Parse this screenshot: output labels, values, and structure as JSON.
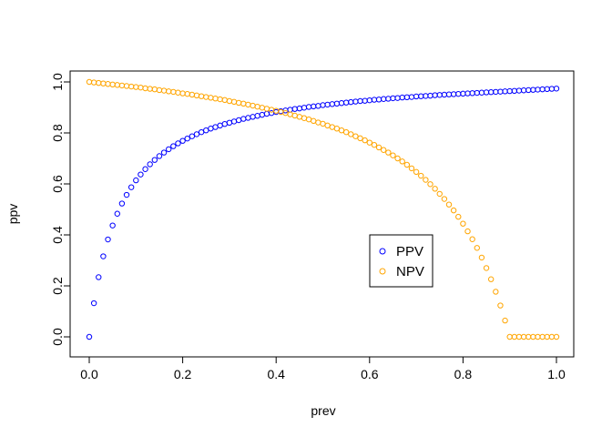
{
  "chart_data": {
    "type": "scatter",
    "title": "",
    "xlabel": "prev",
    "ylabel": "ppv",
    "xlim": [
      0,
      1
    ],
    "ylim": [
      0,
      1
    ],
    "xticks": [
      "0.0",
      "0.2",
      "0.4",
      "0.6",
      "0.8",
      "1.0"
    ],
    "yticks": [
      "0.0",
      "0.2",
      "0.4",
      "0.6",
      "0.8",
      "1.0"
    ],
    "grid": false,
    "legend_position": "center-right",
    "marker": "open-circle",
    "series": [
      {
        "name": "PPV",
        "color": "#0000ff",
        "x": [
          0,
          0.01,
          0.02,
          0.03,
          0.04,
          0.05,
          0.06,
          0.07,
          0.08,
          0.09,
          0.1,
          0.11,
          0.12,
          0.13,
          0.14,
          0.15,
          0.16,
          0.17,
          0.18,
          0.19,
          0.2,
          0.21,
          0.22,
          0.23,
          0.24,
          0.25,
          0.26,
          0.27,
          0.28,
          0.29,
          0.3,
          0.31,
          0.32,
          0.33,
          0.34,
          0.35,
          0.36,
          0.37,
          0.38,
          0.39,
          0.4,
          0.41,
          0.42,
          0.43,
          0.44,
          0.45,
          0.46,
          0.47,
          0.48,
          0.49,
          0.5,
          0.51,
          0.52,
          0.53,
          0.54,
          0.55,
          0.56,
          0.57,
          0.58,
          0.59,
          0.6,
          0.61,
          0.62,
          0.63,
          0.64,
          0.65,
          0.66,
          0.67,
          0.68,
          0.69,
          0.7,
          0.71,
          0.72,
          0.73,
          0.74,
          0.75,
          0.76,
          0.77,
          0.78,
          0.79,
          0.8,
          0.81,
          0.82,
          0.83,
          0.84,
          0.85,
          0.86,
          0.87,
          0.88,
          0.89,
          0.9,
          0.91,
          0.92,
          0.93,
          0.94,
          0.95,
          0.96,
          0.97,
          0.98,
          0.99,
          1
        ],
        "y": [
          0,
          0.132,
          0.234,
          0.316,
          0.382,
          0.437,
          0.483,
          0.523,
          0.557,
          0.587,
          0.614,
          0.637,
          0.658,
          0.677,
          0.694,
          0.709,
          0.723,
          0.736,
          0.748,
          0.759,
          0.769,
          0.778,
          0.787,
          0.795,
          0.803,
          0.81,
          0.817,
          0.823,
          0.829,
          0.835,
          0.84,
          0.845,
          0.85,
          0.855,
          0.859,
          0.863,
          0.867,
          0.871,
          0.875,
          0.878,
          0.882,
          0.885,
          0.888,
          0.891,
          0.894,
          0.896,
          0.899,
          0.902,
          0.904,
          0.906,
          0.909,
          0.911,
          0.913,
          0.915,
          0.917,
          0.919,
          0.921,
          0.923,
          0.925,
          0.926,
          0.928,
          0.93,
          0.931,
          0.933,
          0.934,
          0.936,
          0.937,
          0.939,
          0.94,
          0.941,
          0.943,
          0.944,
          0.945,
          0.946,
          0.948,
          0.949,
          0.95,
          0.951,
          0.952,
          0.953,
          0.954,
          0.955,
          0.956,
          0.957,
          0.958,
          0.959,
          0.96,
          0.961,
          0.962,
          0.963,
          0.964,
          0.965,
          0.966,
          0.967,
          0.968,
          0.969,
          0.97,
          0.971,
          0.972,
          0.973,
          0.974
        ]
      },
      {
        "name": "NPV",
        "color": "#ffa500",
        "x": [
          0,
          0.01,
          0.02,
          0.03,
          0.04,
          0.05,
          0.06,
          0.07,
          0.08,
          0.09,
          0.1,
          0.11,
          0.12,
          0.13,
          0.14,
          0.15,
          0.16,
          0.17,
          0.18,
          0.19,
          0.2,
          0.21,
          0.22,
          0.23,
          0.24,
          0.25,
          0.26,
          0.27,
          0.28,
          0.29,
          0.3,
          0.31,
          0.32,
          0.33,
          0.34,
          0.35,
          0.36,
          0.37,
          0.38,
          0.39,
          0.4,
          0.41,
          0.42,
          0.43,
          0.44,
          0.45,
          0.46,
          0.47,
          0.48,
          0.49,
          0.5,
          0.51,
          0.52,
          0.53,
          0.54,
          0.55,
          0.56,
          0.57,
          0.58,
          0.59,
          0.6,
          0.61,
          0.62,
          0.63,
          0.64,
          0.65,
          0.66,
          0.67,
          0.68,
          0.69,
          0.7,
          0.71,
          0.72,
          0.73,
          0.74,
          0.75,
          0.76,
          0.77,
          0.78,
          0.79,
          0.8,
          0.81,
          0.82,
          0.83,
          0.84,
          0.85,
          0.86,
          0.87,
          0.88,
          0.89,
          0.9,
          0.91,
          0.92,
          0.93,
          0.94,
          0.95,
          0.96,
          0.97,
          0.98,
          0.99,
          1
        ],
        "y": [
          1,
          0.998,
          0.996,
          0.994,
          0.992,
          0.99,
          0.988,
          0.986,
          0.984,
          0.982,
          0.98,
          0.978,
          0.975,
          0.973,
          0.971,
          0.968,
          0.966,
          0.963,
          0.961,
          0.958,
          0.955,
          0.953,
          0.95,
          0.947,
          0.944,
          0.941,
          0.938,
          0.935,
          0.932,
          0.929,
          0.925,
          0.922,
          0.918,
          0.915,
          0.911,
          0.907,
          0.903,
          0.899,
          0.895,
          0.891,
          0.887,
          0.882,
          0.878,
          0.873,
          0.868,
          0.863,
          0.858,
          0.853,
          0.847,
          0.841,
          0.836,
          0.829,
          0.823,
          0.817,
          0.81,
          0.803,
          0.795,
          0.787,
          0.779,
          0.771,
          0.762,
          0.753,
          0.743,
          0.733,
          0.723,
          0.712,
          0.7,
          0.688,
          0.675,
          0.661,
          0.647,
          0.632,
          0.616,
          0.599,
          0.581,
          0.561,
          0.541,
          0.519,
          0.496,
          0.471,
          0.444,
          0.414,
          0.383,
          0.349,
          0.311,
          0.27,
          0.226,
          0.177,
          0.123,
          0.064,
          0,
          0,
          0,
          0,
          0,
          0,
          0,
          0,
          0,
          0,
          0
        ]
      }
    ]
  }
}
